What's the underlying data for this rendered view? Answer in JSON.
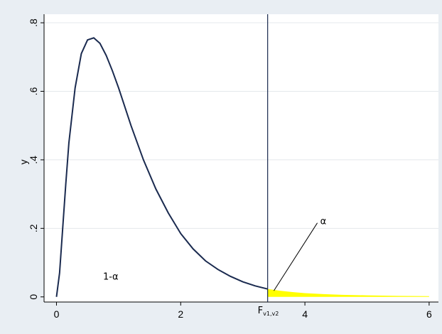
{
  "chart_data": {
    "type": "area",
    "title": "",
    "xlabel": "",
    "ylabel": "y",
    "xlim": [
      -0.2,
      6.15
    ],
    "ylim": [
      -0.015,
      0.825
    ],
    "xticks": [
      0,
      2,
      4,
      6
    ],
    "xtick_labels": [
      "0",
      "2",
      "4",
      "6"
    ],
    "yticks": [
      0,
      0.2,
      0.4,
      0.6,
      0.8
    ],
    "ytick_labels": [
      "0",
      ".2",
      ".4",
      ".6",
      ".8"
    ],
    "grid": true,
    "critical_value": {
      "x": 3.4,
      "label_main": "F",
      "label_sub": "v1,v2"
    },
    "series": [
      {
        "x": [
          0,
          0.05,
          0.1,
          0.15,
          0.2,
          0.3,
          0.4,
          0.5,
          0.6,
          0.7,
          0.8,
          0.9,
          1.0,
          1.2,
          1.4,
          1.6,
          1.8,
          2.0,
          2.2,
          2.4,
          2.6,
          2.8,
          3.0,
          3.2,
          3.4
        ],
        "y": [
          0.0,
          0.07,
          0.2,
          0.33,
          0.45,
          0.61,
          0.71,
          0.75,
          0.756,
          0.74,
          0.705,
          0.66,
          0.61,
          0.5,
          0.4,
          0.315,
          0.245,
          0.185,
          0.14,
          0.105,
          0.08,
          0.06,
          0.044,
          0.032,
          0.023
        ]
      }
    ],
    "shaded_region": {
      "color": "#ffff00",
      "x": [
        3.4,
        3.6,
        3.8,
        4.0,
        4.3,
        4.6,
        5.0,
        5.5,
        6.0
      ],
      "y": [
        0.023,
        0.018,
        0.014,
        0.011,
        0.008,
        0.006,
        0.0045,
        0.003,
        0.002
      ]
    },
    "annotations": [
      {
        "text": "1-α",
        "x": 0.75,
        "y": 0.05
      },
      {
        "text": "α",
        "x": 4.2,
        "y": 0.22
      }
    ],
    "colors": {
      "curve": "#1a2a4f",
      "fill": "#ffff00",
      "plot_bg": "#ffffff",
      "page_bg": "#e9eef3",
      "grid": "#e4e8ec"
    }
  }
}
